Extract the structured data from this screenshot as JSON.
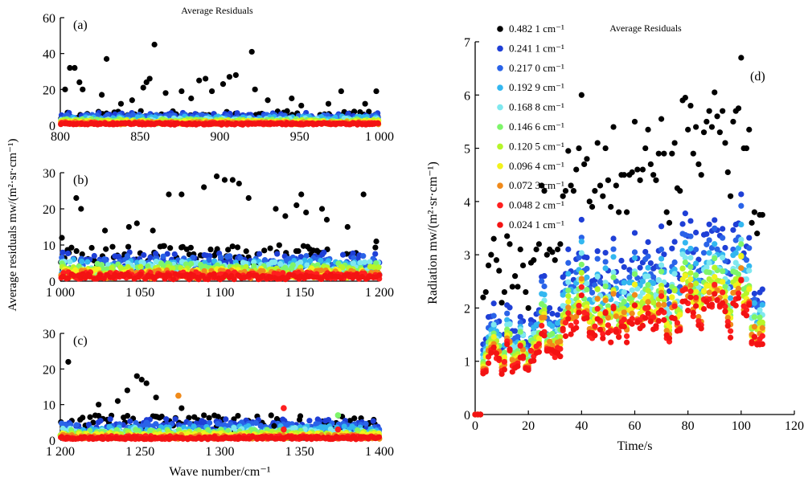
{
  "colors": {
    "black": "#000000",
    "blue_dark": "#1f3fd6",
    "blue": "#2a63e8",
    "sky": "#33b7f0",
    "cyan": "#7fe8ef",
    "green_light": "#7ef56a",
    "green_yellow": "#b6f52a",
    "yellow": "#f2f21c",
    "orange": "#f08a1a",
    "red": "#ff1f1f",
    "red_dark": "#f31313"
  },
  "chart_data": [
    {
      "id": "a",
      "type": "scatter",
      "panel_label": "(a)",
      "title": "Average Residuals",
      "xlabel": "",
      "ylabel": "",
      "xlim": [
        800,
        1000
      ],
      "ylim": [
        0,
        60
      ],
      "xticks": [
        "800",
        "850",
        "900",
        "950",
        "1 000"
      ],
      "yticks": [
        "0",
        "20",
        "40",
        "60"
      ],
      "grid": false,
      "outliers": [
        [
          803,
          20
        ],
        [
          806,
          32
        ],
        [
          809,
          32
        ],
        [
          812,
          24
        ],
        [
          814,
          20
        ],
        [
          826,
          17
        ],
        [
          829,
          37
        ],
        [
          838,
          12
        ],
        [
          845,
          14
        ],
        [
          852,
          21
        ],
        [
          854,
          24
        ],
        [
          856,
          26
        ],
        [
          859,
          45
        ],
        [
          866,
          18
        ],
        [
          876,
          19
        ],
        [
          882,
          15
        ],
        [
          887,
          25
        ],
        [
          891,
          26
        ],
        [
          895,
          19
        ],
        [
          902,
          23
        ],
        [
          906,
          27
        ],
        [
          910,
          28
        ],
        [
          920,
          41
        ],
        [
          922,
          20
        ],
        [
          930,
          14
        ],
        [
          945,
          15
        ],
        [
          951,
          11
        ],
        [
          968,
          12
        ],
        [
          976,
          19
        ],
        [
          991,
          12
        ],
        [
          998,
          19
        ]
      ],
      "series_top": [
        8,
        7,
        6,
        5,
        4,
        3.5,
        3,
        2.5,
        2,
        1.5,
        1.2
      ]
    },
    {
      "id": "b",
      "type": "scatter",
      "panel_label": "(b)",
      "xlabel": "",
      "ylabel": "",
      "xlim": [
        1000,
        1200
      ],
      "ylim": [
        0,
        30
      ],
      "xticks": [
        "1 000",
        "1 050",
        "1 100",
        "1 150",
        "1 200"
      ],
      "yticks": [
        "0",
        "10",
        "20",
        "30"
      ],
      "grid": false,
      "outliers": [
        [
          1001,
          12
        ],
        [
          1010,
          23
        ],
        [
          1013,
          20
        ],
        [
          1028,
          14
        ],
        [
          1043,
          15
        ],
        [
          1048,
          16
        ],
        [
          1058,
          14
        ],
        [
          1068,
          24
        ],
        [
          1076,
          24
        ],
        [
          1090,
          26
        ],
        [
          1098,
          29
        ],
        [
          1103,
          28
        ],
        [
          1108,
          28
        ],
        [
          1112,
          27
        ],
        [
          1118,
          23
        ],
        [
          1135,
          20
        ],
        [
          1141,
          18
        ],
        [
          1148,
          21
        ],
        [
          1151,
          24
        ],
        [
          1154,
          19
        ],
        [
          1164,
          20
        ],
        [
          1167,
          17
        ],
        [
          1180,
          15
        ],
        [
          1190,
          24
        ],
        [
          1198,
          11
        ]
      ],
      "series_top": [
        10,
        8,
        7,
        6,
        5.5,
        5,
        4,
        3.5,
        3,
        2.5,
        2
      ]
    },
    {
      "id": "c",
      "type": "scatter",
      "panel_label": "(c)",
      "xlabel": "Wave number/cm⁻¹",
      "ylabel": "",
      "xlim": [
        1200,
        1400
      ],
      "ylim": [
        0,
        30
      ],
      "xticks": [
        "1 200",
        "1 250",
        "1 300",
        "1 350",
        "1 400"
      ],
      "yticks": [
        "0",
        "10",
        "20",
        "30"
      ],
      "grid": false,
      "outliers": [
        [
          1205,
          22
        ],
        [
          1224,
          10
        ],
        [
          1236,
          11
        ],
        [
          1242,
          14
        ],
        [
          1248,
          18
        ],
        [
          1251,
          17
        ],
        [
          1254,
          16
        ],
        [
          1260,
          12
        ],
        [
          1276,
          9
        ],
        [
          1290,
          7
        ],
        [
          1334,
          4
        ]
      ],
      "special_points": [
        {
          "x": 1274,
          "y": 12.5,
          "color": "#f08a1a"
        },
        {
          "x": 1340,
          "y": 9,
          "color": "#ff1f1f"
        },
        {
          "x": 1340,
          "y": 3,
          "color": "#ff1f1f"
        },
        {
          "x": 1374,
          "y": 7,
          "color": "#7ef56a"
        },
        {
          "x": 1374,
          "y": 3,
          "color": "#ff1f1f"
        }
      ],
      "series_top": [
        7,
        6,
        5,
        4,
        3.5,
        3,
        2.5,
        2,
        1.5,
        1.2,
        1
      ]
    },
    {
      "id": "d",
      "type": "scatter",
      "panel_label": "(d)",
      "title": "Average Residuals",
      "xlabel": "Time/s",
      "ylabel": "Radiation mw/(m²·sr·cm⁻¹)",
      "xlim": [
        0,
        120
      ],
      "ylim": [
        0,
        7
      ],
      "xticks": [
        "0",
        "20",
        "40",
        "60",
        "80",
        "100",
        "120"
      ],
      "yticks": [
        "0",
        "1",
        "2",
        "3",
        "4",
        "5",
        "6",
        "7"
      ],
      "grid": false,
      "legend_position": "top-left",
      "series": [
        {
          "name": "0.482 1 cm⁻¹",
          "color": "#000000",
          "scale": 1.0
        },
        {
          "name": "0.241 1 cm⁻¹",
          "color": "#1f3fd6",
          "scale": 0.62
        },
        {
          "name": "0.217 0 cm⁻¹",
          "color": "#2a63e8",
          "scale": 0.57
        },
        {
          "name": "0.192 9 cm⁻¹",
          "color": "#33b7f0",
          "scale": 0.53
        },
        {
          "name": "0.168 8 cm⁻¹",
          "color": "#7fe8ef",
          "scale": 0.5
        },
        {
          "name": "0.146 6 cm⁻¹",
          "color": "#7ef56a",
          "scale": 0.47
        },
        {
          "name": "0.120 5 cm⁻¹",
          "color": "#b6f52a",
          "scale": 0.45
        },
        {
          "name": "0.096 4 cm⁻¹",
          "color": "#f2f21c",
          "scale": 0.43
        },
        {
          "name": "0.072 3 cm⁻¹",
          "color": "#f08a1a",
          "scale": 0.41
        },
        {
          "name": "0.048 2 cm⁻¹",
          "color": "#ff1f1f",
          "scale": 0.39
        },
        {
          "name": "0.024 1 cm⁻¹",
          "color": "#f31313",
          "scale": 0.37
        }
      ],
      "black_series": [
        [
          0,
          0
        ],
        [
          1,
          0
        ],
        [
          2,
          0
        ],
        [
          3,
          2.2
        ],
        [
          4,
          2.3
        ],
        [
          5,
          2.8
        ],
        [
          6,
          3.0
        ],
        [
          7,
          3.3
        ],
        [
          8,
          2.9
        ],
        [
          9,
          2.7
        ],
        [
          10,
          2.1
        ],
        [
          11,
          2.3
        ],
        [
          12,
          3.35
        ],
        [
          13,
          3.2
        ],
        [
          14,
          2.4
        ],
        [
          15,
          2.6
        ],
        [
          16,
          2.4
        ],
        [
          17,
          3.1
        ],
        [
          18,
          2.8
        ],
        [
          19,
          2.3
        ],
        [
          20,
          2.0
        ],
        [
          21,
          2.85
        ],
        [
          22,
          2.9
        ],
        [
          23,
          3.1
        ],
        [
          24,
          3.2
        ],
        [
          25,
          4.3
        ],
        [
          26,
          4.2
        ],
        [
          27,
          3.0
        ],
        [
          28,
          3.1
        ],
        [
          29,
          3.05
        ],
        [
          30,
          2.9
        ],
        [
          31,
          3.1
        ],
        [
          32,
          3.2
        ],
        [
          33,
          4.1
        ],
        [
          34,
          4.2
        ],
        [
          35,
          4.95
        ],
        [
          36,
          4.3
        ],
        [
          37,
          4.2
        ],
        [
          38,
          4.6
        ],
        [
          39,
          5.0
        ],
        [
          40,
          6.0
        ],
        [
          41,
          4.7
        ],
        [
          42,
          4.8
        ],
        [
          43,
          4.0
        ],
        [
          44,
          3.9
        ],
        [
          45,
          4.2
        ],
        [
          46,
          5.1
        ],
        [
          47,
          4.3
        ],
        [
          48,
          4.1
        ],
        [
          49,
          5.0
        ],
        [
          50,
          4.4
        ],
        [
          51,
          3.9
        ],
        [
          52,
          5.4
        ],
        [
          53,
          4.3
        ],
        [
          54,
          3.8
        ],
        [
          55,
          4.5
        ],
        [
          56,
          4.5
        ],
        [
          57,
          3.8
        ],
        [
          58,
          4.5
        ],
        [
          59,
          4.55
        ],
        [
          60,
          5.5
        ],
        [
          61,
          4.6
        ],
        [
          62,
          4.4
        ],
        [
          63,
          4.6
        ],
        [
          64,
          5.0
        ],
        [
          65,
          5.35
        ],
        [
          66,
          4.7
        ],
        [
          67,
          4.5
        ],
        [
          68,
          4.4
        ],
        [
          69,
          4.9
        ],
        [
          70,
          5.55
        ],
        [
          71,
          4.9
        ],
        [
          72,
          3.8
        ],
        [
          73,
          3.6
        ],
        [
          74,
          4.9
        ],
        [
          75,
          5.1
        ],
        [
          76,
          4.25
        ],
        [
          77,
          4.2
        ],
        [
          78,
          5.9
        ],
        [
          79,
          5.95
        ],
        [
          80,
          5.35
        ],
        [
          81,
          5.8
        ],
        [
          82,
          4.9
        ],
        [
          83,
          5.4
        ],
        [
          84,
          4.7
        ],
        [
          85,
          4.5
        ],
        [
          86,
          5.3
        ],
        [
          87,
          5.5
        ],
        [
          88,
          5.7
        ],
        [
          89,
          5.4
        ],
        [
          90,
          6.05
        ],
        [
          91,
          5.6
        ],
        [
          92,
          5.3
        ],
        [
          93,
          5.7
        ],
        [
          94,
          5.1
        ],
        [
          95,
          4.55
        ],
        [
          96,
          4.1
        ],
        [
          97,
          5.5
        ],
        [
          98,
          5.7
        ],
        [
          99,
          5.75
        ],
        [
          100,
          6.7
        ],
        [
          101,
          5.0
        ],
        [
          102,
          5.0
        ],
        [
          103,
          5.35
        ],
        [
          104,
          3.6
        ],
        [
          105,
          3.8
        ],
        [
          106,
          3.4
        ],
        [
          107,
          3.75
        ],
        [
          108,
          3.75
        ]
      ]
    }
  ]
}
